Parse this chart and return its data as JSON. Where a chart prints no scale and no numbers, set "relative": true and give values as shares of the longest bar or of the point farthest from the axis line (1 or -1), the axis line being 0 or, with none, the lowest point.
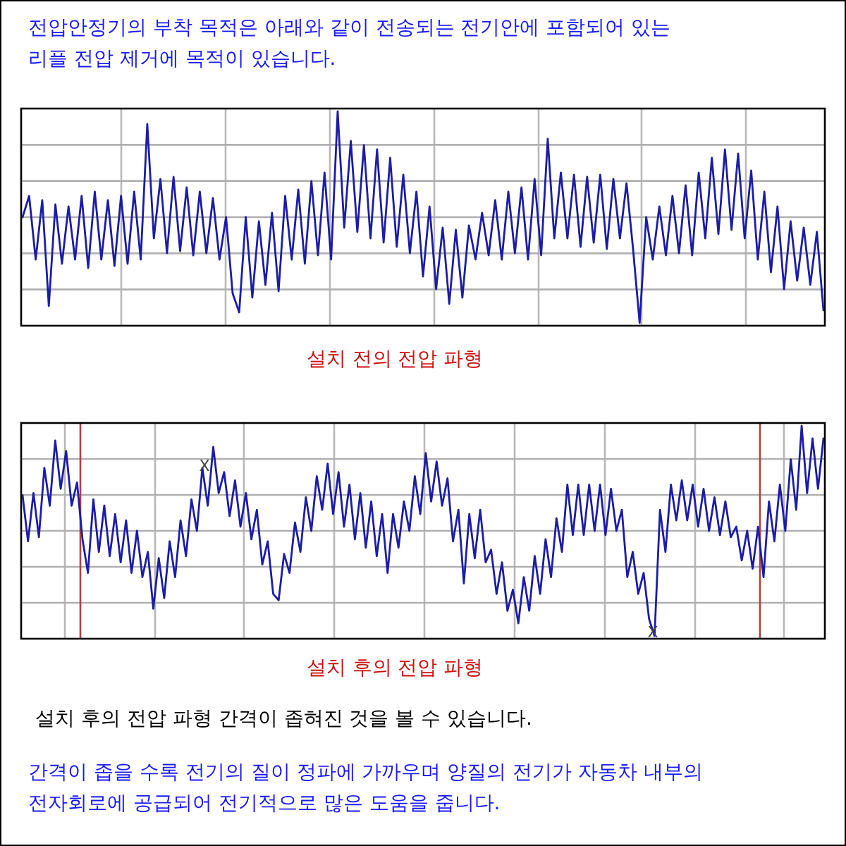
{
  "chart_data": [
    {
      "type": "line",
      "title": "전압안정기의 부착 목적은 아래와 같이 전송되는 전기안에 포함되어 있는\n리플 전압 제거에 목적이 있습니다.",
      "xlabel": "설치 전의 전압 파형",
      "relative": true,
      "grid": true,
      "categories": [
        null,
        null,
        null,
        null,
        null,
        null,
        null,
        null,
        null,
        null,
        null,
        null,
        null,
        null,
        null,
        null,
        null,
        null,
        null,
        null,
        null,
        null,
        null,
        null,
        null,
        null,
        null,
        null,
        null,
        null,
        null,
        null,
        null,
        null,
        null,
        null,
        null,
        null,
        null,
        null,
        null,
        null,
        null,
        null,
        null,
        null,
        null,
        null,
        null,
        null,
        null,
        null,
        null,
        null,
        null,
        null,
        null,
        null,
        null,
        null,
        null,
        null,
        null,
        null,
        null,
        null,
        null,
        null,
        null,
        null,
        null,
        null,
        null,
        null,
        null,
        null,
        null,
        null,
        null,
        null,
        null,
        null,
        null,
        null,
        null,
        null,
        null,
        null,
        null,
        null,
        null,
        null,
        null,
        null,
        null,
        null,
        null,
        null,
        null,
        null,
        null,
        null,
        null,
        null,
        null,
        null,
        null,
        null,
        null,
        null,
        null,
        null,
        null,
        null,
        null,
        null,
        null,
        null,
        null,
        null,
        null,
        null,
        null
      ],
      "series": [
        {
          "color": "#1c1ca6",
          "values": [
            0.5,
            0.6,
            0.3,
            0.58,
            0.08,
            0.56,
            0.28,
            0.55,
            0.3,
            0.6,
            0.26,
            0.62,
            0.3,
            0.58,
            0.27,
            0.6,
            0.28,
            0.62,
            0.3,
            0.94,
            0.4,
            0.68,
            0.33,
            0.69,
            0.34,
            0.64,
            0.32,
            0.62,
            0.33,
            0.59,
            0.3,
            0.5,
            0.14,
            0.05,
            0.5,
            0.12,
            0.48,
            0.18,
            0.52,
            0.15,
            0.6,
            0.3,
            0.63,
            0.28,
            0.67,
            0.32,
            0.71,
            0.3,
            1.0,
            0.45,
            0.86,
            0.43,
            0.84,
            0.4,
            0.82,
            0.38,
            0.78,
            0.36,
            0.7,
            0.33,
            0.62,
            0.22,
            0.55,
            0.16,
            0.45,
            0.09,
            0.44,
            0.12,
            0.46,
            0.3,
            0.52,
            0.32,
            0.58,
            0.3,
            0.62,
            0.33,
            0.64,
            0.3,
            0.68,
            0.32,
            0.87,
            0.4,
            0.71,
            0.4,
            0.7,
            0.36,
            0.69,
            0.38,
            0.7,
            0.35,
            0.68,
            0.4,
            0.66,
            0.35,
            0.0,
            0.5,
            0.3,
            0.55,
            0.32,
            0.6,
            0.33,
            0.65,
            0.32,
            0.71,
            0.4,
            0.78,
            0.42,
            0.82,
            0.44,
            0.8,
            0.4,
            0.72,
            0.3,
            0.62,
            0.24,
            0.55,
            0.16,
            0.48,
            0.2,
            0.45,
            0.18,
            0.43,
            0.06
          ]
        }
      ]
    },
    {
      "type": "line",
      "xlabel": "설치 후의 전압 파형",
      "relative": true,
      "grid": true,
      "categories": [
        null,
        null,
        null,
        null,
        null,
        null,
        null,
        null,
        null,
        null,
        null,
        null,
        null,
        null,
        null,
        null,
        null,
        null,
        null,
        null,
        null,
        null,
        null,
        null,
        null,
        null,
        null,
        null,
        null,
        null,
        null,
        null,
        null,
        null,
        null,
        null,
        null,
        null,
        null,
        null,
        null,
        null,
        null,
        null,
        null,
        null,
        null,
        null,
        null,
        null,
        null,
        null,
        null,
        null,
        null,
        null,
        null,
        null,
        null,
        null,
        null,
        null,
        null,
        null,
        null,
        null,
        null,
        null,
        null,
        null,
        null,
        null,
        null,
        null,
        null,
        null,
        null,
        null,
        null,
        null,
        null,
        null,
        null,
        null,
        null,
        null,
        null,
        null,
        null,
        null,
        null,
        null,
        null,
        null,
        null,
        null,
        null,
        null,
        null,
        null,
        null,
        null,
        null,
        null,
        null,
        null,
        null,
        null,
        null,
        null,
        null,
        null,
        null,
        null,
        null,
        null,
        null,
        null,
        null,
        null,
        null,
        null,
        null,
        null,
        null,
        null,
        null,
        null,
        null,
        null,
        null,
        null,
        null,
        null,
        null,
        null,
        null,
        null,
        null,
        null,
        null,
        null,
        null,
        null,
        null,
        null,
        null,
        null
      ],
      "series": [
        {
          "color": "#1c1ca6",
          "values": [
            0.67,
            0.45,
            0.68,
            0.47,
            0.8,
            0.62,
            0.93,
            0.7,
            0.88,
            0.62,
            0.73,
            0.46,
            0.3,
            0.65,
            0.4,
            0.62,
            0.38,
            0.58,
            0.35,
            0.55,
            0.3,
            0.5,
            0.28,
            0.4,
            0.13,
            0.37,
            0.18,
            0.45,
            0.28,
            0.55,
            0.38,
            0.65,
            0.5,
            0.8,
            0.62,
            0.9,
            0.68,
            0.78,
            0.57,
            0.74,
            0.52,
            0.68,
            0.46,
            0.6,
            0.34,
            0.45,
            0.2,
            0.17,
            0.39,
            0.3,
            0.54,
            0.4,
            0.66,
            0.5,
            0.76,
            0.6,
            0.82,
            0.58,
            0.78,
            0.52,
            0.72,
            0.46,
            0.68,
            0.42,
            0.64,
            0.38,
            0.58,
            0.3,
            0.58,
            0.42,
            0.64,
            0.5,
            0.76,
            0.58,
            0.87,
            0.64,
            0.83,
            0.62,
            0.75,
            0.45,
            0.6,
            0.25,
            0.58,
            0.37,
            0.6,
            0.35,
            0.41,
            0.2,
            0.35,
            0.12,
            0.22,
            0.06,
            0.28,
            0.12,
            0.38,
            0.2,
            0.46,
            0.28,
            0.56,
            0.4,
            0.72,
            0.48,
            0.72,
            0.48,
            0.72,
            0.5,
            0.72,
            0.48,
            0.7,
            0.5,
            0.6,
            0.28,
            0.4,
            0.2,
            0.3,
            0.08,
            0.0,
            0.6,
            0.4,
            0.72,
            0.55,
            0.74,
            0.55,
            0.72,
            0.52,
            0.7,
            0.5,
            0.66,
            0.48,
            0.64,
            0.47,
            0.52,
            0.36,
            0.5,
            0.32,
            0.52,
            0.28,
            0.64,
            0.45,
            0.72,
            0.5,
            0.84,
            0.6,
            1.0,
            0.68,
            0.94,
            0.7,
            0.94
          ]
        }
      ],
      "annotations": [
        "X",
        "X",
        "설치 후의 전압 파형 간격이 좁혀진 것을 볼 수 있습니다.",
        "간격이 좁을 수록 전기의 질이 정파에 가까우며 양질의 전기가 자동차 내부의\n전자회로에 공급되어 전기적으로 많은 도움을 줍니다."
      ]
    }
  ]
}
